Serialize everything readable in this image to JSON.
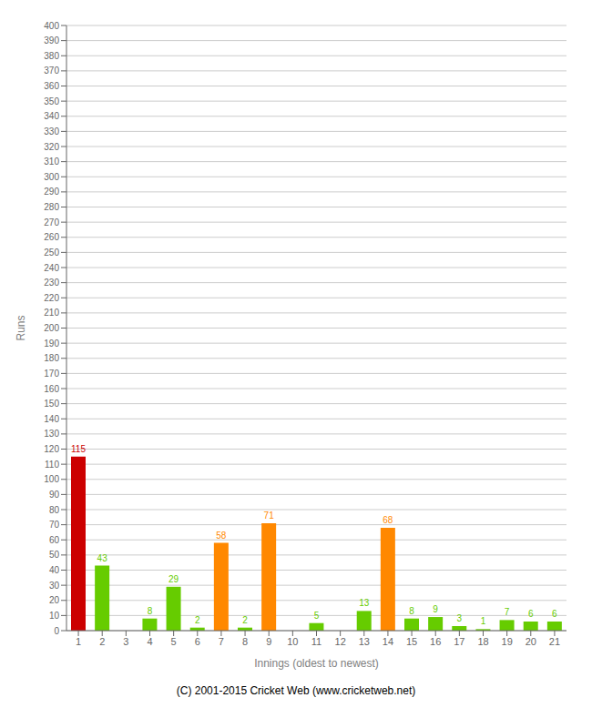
{
  "chart_data": {
    "type": "bar",
    "categories": [
      "1",
      "2",
      "3",
      "4",
      "5",
      "6",
      "7",
      "8",
      "9",
      "10",
      "11",
      "12",
      "13",
      "14",
      "15",
      "16",
      "17",
      "18",
      "19",
      "20",
      "21"
    ],
    "values": [
      115,
      43,
      0,
      8,
      29,
      2,
      58,
      2,
      71,
      0,
      5,
      0,
      13,
      68,
      8,
      9,
      3,
      1,
      7,
      6,
      6
    ],
    "colors": [
      "#cc0000",
      "#66cc00",
      "#66cc00",
      "#66cc00",
      "#66cc00",
      "#66cc00",
      "#ff8800",
      "#66cc00",
      "#ff8800",
      "#66cc00",
      "#66cc00",
      "#66cc00",
      "#66cc00",
      "#ff8800",
      "#66cc00",
      "#66cc00",
      "#66cc00",
      "#66cc00",
      "#66cc00",
      "#66cc00",
      "#66cc00"
    ],
    "xlabel": "Innings (oldest to newest)",
    "ylabel": "Runs",
    "ylim": [
      0,
      400
    ],
    "yticks": [
      0,
      10,
      20,
      30,
      40,
      50,
      60,
      70,
      80,
      90,
      100,
      110,
      120,
      130,
      140,
      150,
      160,
      170,
      180,
      190,
      200,
      210,
      220,
      230,
      240,
      250,
      260,
      270,
      280,
      290,
      300,
      310,
      320,
      330,
      340,
      350,
      360,
      370,
      380,
      390,
      400
    ],
    "grid": true,
    "data_labels": true,
    "annotations": [
      "(C) 2001-2015 Cricket Web (www.cricketweb.net)"
    ]
  }
}
